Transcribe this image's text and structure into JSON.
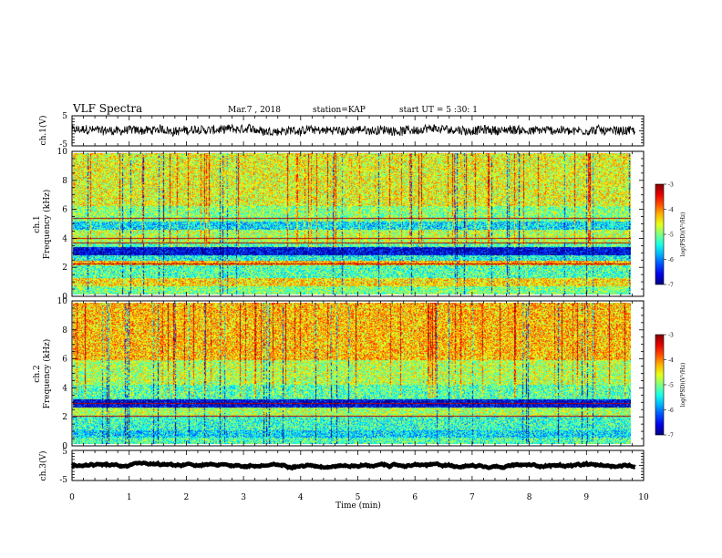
{
  "header": {
    "title": "VLF Spectra",
    "date": "Mar.7 , 2018",
    "station": "station=KAP",
    "start_ut": "start UT = 5 :30: 1"
  },
  "chart_data": [
    {
      "type": "line",
      "name": "ch1-waveform",
      "ylabel": "ch.1(V)",
      "xlim": [
        0,
        10
      ],
      "ylim": [
        -5,
        5
      ],
      "ytick_labels": [
        "5",
        "-5"
      ],
      "mean": 0.2,
      "amplitude": 1.5
    },
    {
      "type": "heatmap",
      "name": "ch1-spectrogram",
      "ylabel": "ch.1\nFrequency (kHz)",
      "xlim": [
        0,
        10
      ],
      "ylim": [
        0,
        10
      ],
      "ytick_labels": [
        "0",
        "2",
        "4",
        "6",
        "8",
        "10"
      ],
      "colorbar": {
        "label": "log(PSD)(V²/Hz)",
        "range": [
          -7,
          -3
        ],
        "tick_labels": [
          "-3",
          "-4",
          "-5",
          "-6",
          "-7"
        ]
      },
      "bands_khz": [
        {
          "from": 0.0,
          "to": 0.6,
          "level": -5.0
        },
        {
          "from": 0.6,
          "to": 1.2,
          "level": -4.4
        },
        {
          "from": 1.2,
          "to": 2.1,
          "level": -5.2
        },
        {
          "from": 2.1,
          "to": 2.4,
          "level": -4.2
        },
        {
          "from": 2.4,
          "to": 2.8,
          "level": -5.4
        },
        {
          "from": 2.8,
          "to": 3.4,
          "level": -6.6
        },
        {
          "from": 3.4,
          "to": 3.7,
          "level": -5.2
        },
        {
          "from": 3.7,
          "to": 4.6,
          "level": -4.8
        },
        {
          "from": 4.6,
          "to": 5.2,
          "level": -5.6
        },
        {
          "from": 5.2,
          "to": 6.3,
          "level": -5.0
        },
        {
          "from": 6.3,
          "to": 10.0,
          "level": -4.6
        }
      ],
      "lines_khz": [
        2.2,
        3.7,
        4.0,
        5.4
      ]
    },
    {
      "type": "heatmap",
      "name": "ch2-spectrogram",
      "ylabel": "ch.2\nFrequency (kHz)",
      "xlim": [
        0,
        10
      ],
      "ylim": [
        0,
        10
      ],
      "ytick_labels": [
        "0",
        "2",
        "4",
        "6",
        "8",
        "10"
      ],
      "colorbar": {
        "label": "log(PSD)(V²/Hz)",
        "range": [
          -7,
          -3
        ],
        "tick_labels": [
          "-3",
          "-4",
          "-5",
          "-6",
          "-7"
        ]
      },
      "bands_khz": [
        {
          "from": 0.0,
          "to": 0.5,
          "level": -5.2
        },
        {
          "from": 0.5,
          "to": 1.0,
          "level": -5.6
        },
        {
          "from": 1.0,
          "to": 2.0,
          "level": -5.3
        },
        {
          "from": 2.0,
          "to": 2.6,
          "level": -4.8
        },
        {
          "from": 2.6,
          "to": 3.2,
          "level": -6.6
        },
        {
          "from": 3.2,
          "to": 4.2,
          "level": -5.2
        },
        {
          "from": 4.2,
          "to": 6.0,
          "level": -4.8
        },
        {
          "from": 6.0,
          "to": 10.0,
          "level": -4.3
        }
      ],
      "lines_khz": [
        2.0,
        2.9
      ]
    },
    {
      "type": "line",
      "name": "ch3-waveform",
      "ylabel": "ch.3(V)",
      "xlabel": "Time (min)",
      "xlim": [
        0,
        10
      ],
      "ylim": [
        -5,
        5
      ],
      "ytick_labels": [
        "5",
        "-5"
      ],
      "mean": 0,
      "amplitude": 0.15,
      "xtick_labels": [
        "0",
        "1",
        "2",
        "3",
        "4",
        "5",
        "6",
        "7",
        "8",
        "9",
        "10"
      ]
    }
  ]
}
